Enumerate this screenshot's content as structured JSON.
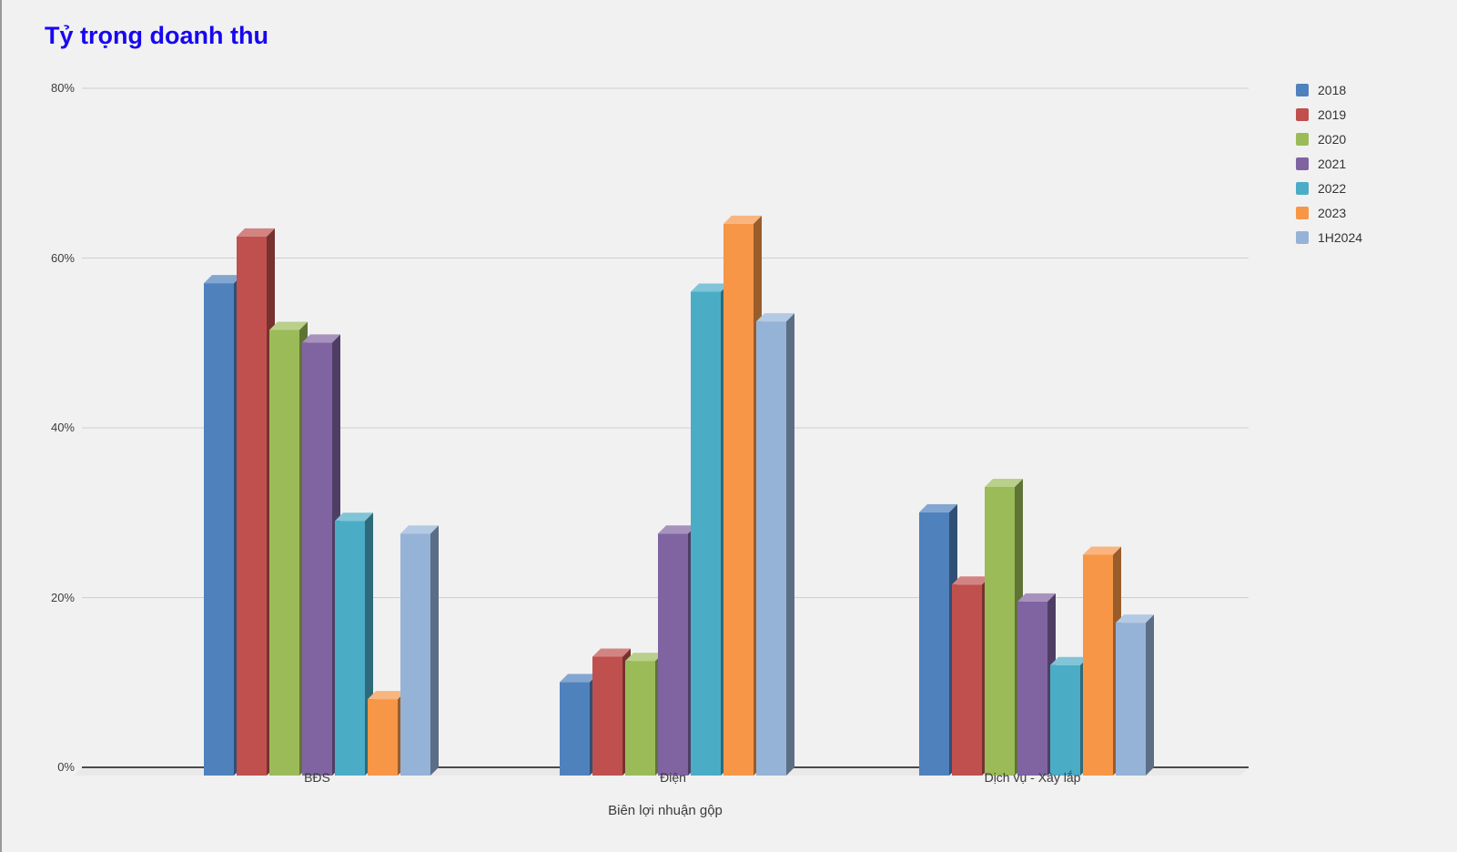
{
  "page": {
    "background_color": "#f1f1f2",
    "left_edge_color": "#9a9a9a"
  },
  "title": {
    "text": "Tỷ trọng doanh thu",
    "color": "#1707F0"
  },
  "chart_data": {
    "type": "bar",
    "style": "3d-column",
    "title": "Tỷ trọng doanh thu",
    "xlabel": "Biên lợi nhuận gộp",
    "ylabel": "",
    "categories": [
      "BĐS",
      "Điện",
      "Dịch vụ - Xây lắp"
    ],
    "series": [
      {
        "name": "2018",
        "color": "#4F81BD",
        "values": [
          58,
          11,
          31
        ]
      },
      {
        "name": "2019",
        "color": "#C0504D",
        "values": [
          63.5,
          14,
          22.5
        ]
      },
      {
        "name": "2020",
        "color": "#9BBB59",
        "values": [
          52.5,
          13.5,
          34
        ]
      },
      {
        "name": "2021",
        "color": "#8064A2",
        "values": [
          51,
          28.5,
          20.5
        ]
      },
      {
        "name": "2022",
        "color": "#4BACC6",
        "values": [
          30,
          57,
          13
        ]
      },
      {
        "name": "2023",
        "color": "#F79646",
        "values": [
          9,
          65,
          26
        ]
      },
      {
        "name": "1H2024",
        "color": "#95B3D7",
        "values": [
          28.5,
          53.5,
          18
        ]
      }
    ],
    "y_axis": {
      "unit": "%",
      "min": 0,
      "max": 80,
      "tick_values": [
        0,
        20,
        40,
        60,
        80
      ],
      "tick_labels": [
        "0%",
        "20%",
        "40%",
        "60%",
        "80%"
      ]
    },
    "grid": true,
    "legend_position": "right",
    "gridline_color": "#cfcfcf",
    "baseline_color": "#4a4a4a",
    "floor_color": "#e9e9ea"
  }
}
